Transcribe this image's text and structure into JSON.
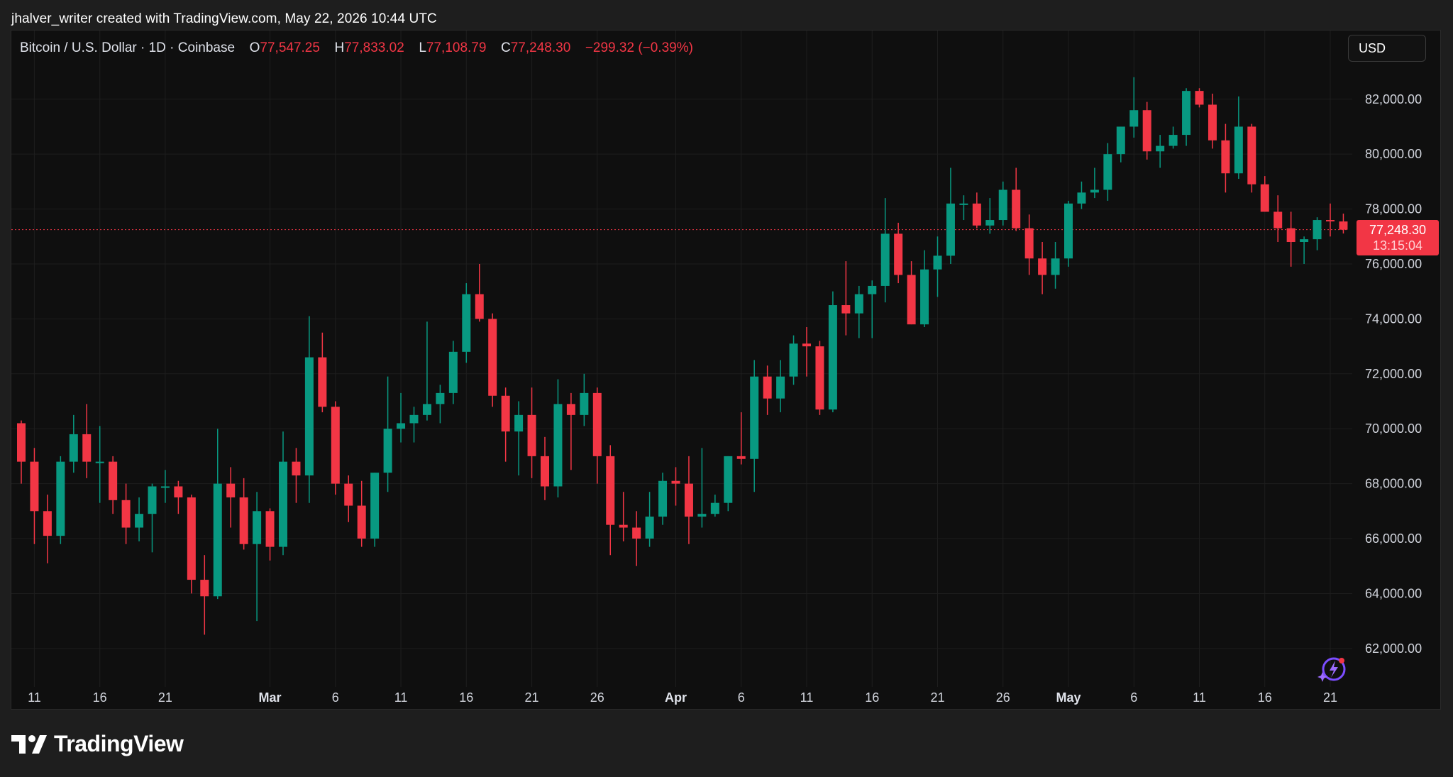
{
  "header": {
    "credit": "jhalver_writer created with TradingView.com, May 22, 2026 10:44 UTC"
  },
  "legend": {
    "symbol": "Bitcoin / U.S. Dollar · 1D · Coinbase",
    "open_label": "O",
    "open": "77,547.25",
    "high_label": "H",
    "high": "77,833.02",
    "low_label": "L",
    "low": "77,108.79",
    "close_label": "C",
    "close": "77,248.30",
    "change": "−299.32 (−0.39%)"
  },
  "currency_button": "USD",
  "last_price": {
    "price": "77,248.30",
    "countdown": "13:15:04"
  },
  "brand": {
    "name": "TradingView"
  },
  "colors": {
    "up": "#089981",
    "down": "#f23645",
    "grid": "#1e1e1e",
    "background": "#0f0f0f"
  },
  "chart_data": {
    "type": "candlestick",
    "y_axis": {
      "ylim": [
        60600,
        84500
      ],
      "ticks": [
        62000,
        64000,
        66000,
        68000,
        70000,
        72000,
        74000,
        76000,
        78000,
        80000,
        82000
      ],
      "tick_labels": [
        "62,000.00",
        "64,000.00",
        "66,000.00",
        "68,000.00",
        "70,000.00",
        "72,000.00",
        "74,000.00",
        "76,000.00",
        "78,000.00",
        "80,000.00",
        "82,000.00"
      ]
    },
    "x_axis": {
      "dates": [
        "Feb 10",
        "Feb 11",
        "Feb 12",
        "Feb 13",
        "Feb 14",
        "Feb 15",
        "Feb 16",
        "Feb 17",
        "Feb 18",
        "Feb 19",
        "Feb 20",
        "Feb 21",
        "Feb 22",
        "Feb 23",
        "Feb 24",
        "Feb 25",
        "Feb 26",
        "Feb 27",
        "Feb 28",
        "Mar 1",
        "Mar 2",
        "Mar 3",
        "Mar 4",
        "Mar 5",
        "Mar 6",
        "Mar 7",
        "Mar 8",
        "Mar 9",
        "Mar 10",
        "Mar 11",
        "Mar 12",
        "Mar 13",
        "Mar 14",
        "Mar 15",
        "Mar 16",
        "Mar 17",
        "Mar 18",
        "Mar 19",
        "Mar 20",
        "Mar 21",
        "Mar 22",
        "Mar 23",
        "Mar 24",
        "Mar 25",
        "Mar 26",
        "Mar 27",
        "Mar 28",
        "Mar 29",
        "Mar 30",
        "Mar 31",
        "Apr 1",
        "Apr 2",
        "Apr 3",
        "Apr 4",
        "Apr 5",
        "Apr 6",
        "Apr 7",
        "Apr 8",
        "Apr 9",
        "Apr 10",
        "Apr 11",
        "Apr 12",
        "Apr 13",
        "Apr 14",
        "Apr 15",
        "Apr 16",
        "Apr 17",
        "Apr 18",
        "Apr 19",
        "Apr 20",
        "Apr 21",
        "Apr 22",
        "Apr 23",
        "Apr 24",
        "Apr 25",
        "Apr 26",
        "Apr 27",
        "Apr 28",
        "Apr 29",
        "Apr 30",
        "May 1",
        "May 2",
        "May 3",
        "May 4",
        "May 5",
        "May 6",
        "May 7",
        "May 8",
        "May 9",
        "May 10",
        "May 11",
        "May 12",
        "May 13",
        "May 14",
        "May 15",
        "May 16",
        "May 17",
        "May 18",
        "May 19",
        "May 20",
        "May 21",
        "May 22"
      ],
      "ticks": [
        {
          "date": "Feb 11",
          "label": "11",
          "bold": false
        },
        {
          "date": "Feb 16",
          "label": "16",
          "bold": false
        },
        {
          "date": "Feb 21",
          "label": "21",
          "bold": false
        },
        {
          "date": "Mar 1",
          "label": "Mar",
          "bold": true
        },
        {
          "date": "Mar 6",
          "label": "6",
          "bold": false
        },
        {
          "date": "Mar 11",
          "label": "11",
          "bold": false
        },
        {
          "date": "Mar 16",
          "label": "16",
          "bold": false
        },
        {
          "date": "Mar 21",
          "label": "21",
          "bold": false
        },
        {
          "date": "Mar 26",
          "label": "26",
          "bold": false
        },
        {
          "date": "Apr 1",
          "label": "Apr",
          "bold": true
        },
        {
          "date": "Apr 6",
          "label": "6",
          "bold": false
        },
        {
          "date": "Apr 11",
          "label": "11",
          "bold": false
        },
        {
          "date": "Apr 16",
          "label": "16",
          "bold": false
        },
        {
          "date": "Apr 21",
          "label": "21",
          "bold": false
        },
        {
          "date": "Apr 26",
          "label": "26",
          "bold": false
        },
        {
          "date": "May 1",
          "label": "May",
          "bold": true
        },
        {
          "date": "May 6",
          "label": "6",
          "bold": false
        },
        {
          "date": "May 11",
          "label": "11",
          "bold": false
        },
        {
          "date": "May 16",
          "label": "16",
          "bold": false
        },
        {
          "date": "May 21",
          "label": "21",
          "bold": false
        }
      ]
    },
    "last_price_value": 77248.3,
    "candles": [
      [
        70200,
        70300,
        68000,
        68800
      ],
      [
        68800,
        69300,
        65800,
        67000
      ],
      [
        67000,
        67600,
        65100,
        66100
      ],
      [
        66100,
        69000,
        65800,
        68800
      ],
      [
        68800,
        70500,
        68400,
        69800
      ],
      [
        69800,
        70900,
        68200,
        68800
      ],
      [
        68800,
        70100,
        67300,
        68800
      ],
      [
        68800,
        69000,
        66900,
        67400
      ],
      [
        67400,
        68000,
        65800,
        66400
      ],
      [
        66400,
        67500,
        65900,
        66900
      ],
      [
        66900,
        68000,
        65500,
        67900
      ],
      [
        67900,
        68500,
        67300,
        67900
      ],
      [
        67900,
        68100,
        66900,
        67500
      ],
      [
        67500,
        67600,
        64000,
        64500
      ],
      [
        64500,
        65400,
        62500,
        63900
      ],
      [
        63900,
        70000,
        63800,
        68000
      ],
      [
        68000,
        68600,
        66400,
        67500
      ],
      [
        67500,
        68200,
        65600,
        65800
      ],
      [
        65800,
        67700,
        63000,
        67000
      ],
      [
        67000,
        67100,
        65200,
        65700
      ],
      [
        65700,
        69900,
        65400,
        68800
      ],
      [
        68800,
        69300,
        67300,
        68300
      ],
      [
        68300,
        74100,
        67300,
        72600
      ],
      [
        72600,
        73500,
        70600,
        70800
      ],
      [
        70800,
        71000,
        67600,
        68000
      ],
      [
        68000,
        68300,
        66600,
        67200
      ],
      [
        67200,
        68100,
        65700,
        66000
      ],
      [
        66000,
        68400,
        65700,
        68400
      ],
      [
        68400,
        71900,
        67700,
        70000
      ],
      [
        70000,
        71300,
        69500,
        70200
      ],
      [
        70200,
        70800,
        69500,
        70500
      ],
      [
        70500,
        73900,
        70300,
        70900
      ],
      [
        70900,
        71600,
        70200,
        71300
      ],
      [
        71300,
        73200,
        70900,
        72800
      ],
      [
        72800,
        75300,
        72400,
        74900
      ],
      [
        74900,
        76000,
        73900,
        74000
      ],
      [
        74000,
        74200,
        70800,
        71200
      ],
      [
        71200,
        71500,
        68800,
        69900
      ],
      [
        69900,
        71000,
        68300,
        70500
      ],
      [
        70500,
        71500,
        68200,
        69000
      ],
      [
        69000,
        69700,
        67400,
        67900
      ],
      [
        67900,
        71800,
        67500,
        70900
      ],
      [
        70900,
        71300,
        68500,
        70500
      ],
      [
        70500,
        72000,
        70100,
        71300
      ],
      [
        71300,
        71500,
        68000,
        69000
      ],
      [
        69000,
        69400,
        65400,
        66500
      ],
      [
        66500,
        67700,
        65900,
        66400
      ],
      [
        66400,
        67000,
        65000,
        66000
      ],
      [
        66000,
        67700,
        65700,
        66800
      ],
      [
        66800,
        68400,
        66500,
        68100
      ],
      [
        68100,
        68600,
        67200,
        68000
      ],
      [
        68000,
        69000,
        65800,
        66800
      ],
      [
        66800,
        69300,
        66400,
        66900
      ],
      [
        66900,
        67600,
        66800,
        67300
      ],
      [
        67300,
        69000,
        67000,
        69000
      ],
      [
        69000,
        70600,
        68700,
        68900
      ],
      [
        68900,
        72500,
        67700,
        71900
      ],
      [
        71900,
        72300,
        70500,
        71100
      ],
      [
        71100,
        72500,
        70600,
        71900
      ],
      [
        71900,
        73400,
        71600,
        73100
      ],
      [
        73100,
        73700,
        71900,
        73000
      ],
      [
        73000,
        73200,
        70500,
        70700
      ],
      [
        70700,
        75000,
        70600,
        74500
      ],
      [
        74500,
        76100,
        73400,
        74200
      ],
      [
        74200,
        75200,
        73300,
        74900
      ],
      [
        74900,
        75400,
        73300,
        75200
      ],
      [
        75200,
        78400,
        74600,
        77100
      ],
      [
        77100,
        77500,
        75300,
        75600
      ],
      [
        75600,
        76100,
        73800,
        73800
      ],
      [
        73800,
        76500,
        73700,
        75800
      ],
      [
        75800,
        77000,
        74800,
        76300
      ],
      [
        76300,
        79500,
        76000,
        78200
      ],
      [
        78200,
        78500,
        77600,
        78200
      ],
      [
        78200,
        78600,
        77300,
        77400
      ],
      [
        77400,
        78400,
        77100,
        77600
      ],
      [
        77600,
        79000,
        77400,
        78700
      ],
      [
        78700,
        79500,
        77200,
        77300
      ],
      [
        77300,
        77800,
        75600,
        76200
      ],
      [
        76200,
        76800,
        74900,
        75600
      ],
      [
        75600,
        76800,
        75100,
        76200
      ],
      [
        76200,
        78300,
        75900,
        78200
      ],
      [
        78200,
        79000,
        78000,
        78600
      ],
      [
        78600,
        79500,
        78400,
        78700
      ],
      [
        78700,
        80400,
        78300,
        80000
      ],
      [
        80000,
        81000,
        79700,
        81000
      ],
      [
        81000,
        82800,
        80600,
        81600
      ],
      [
        81600,
        81900,
        79800,
        80100
      ],
      [
        80100,
        80700,
        79500,
        80300
      ],
      [
        80300,
        81000,
        80200,
        80700
      ],
      [
        80700,
        82400,
        80300,
        82300
      ],
      [
        82300,
        82400,
        81700,
        81800
      ],
      [
        81800,
        82200,
        80200,
        80500
      ],
      [
        80500,
        81100,
        78600,
        79300
      ],
      [
        79300,
        82100,
        79100,
        81000
      ],
      [
        81000,
        81100,
        78600,
        78900
      ],
      [
        78900,
        79200,
        77900,
        77900
      ],
      [
        77900,
        78500,
        76800,
        77300
      ],
      [
        77300,
        77900,
        75900,
        76800
      ],
      [
        76800,
        77000,
        76000,
        76900
      ],
      [
        76900,
        77700,
        76500,
        77600
      ],
      [
        77600,
        78200,
        77000,
        77550
      ],
      [
        77547.25,
        77833.02,
        77108.79,
        77248.3
      ]
    ]
  }
}
